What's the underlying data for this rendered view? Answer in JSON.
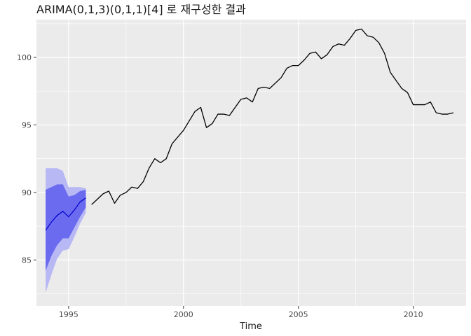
{
  "chart_data": {
    "type": "line",
    "title": "ARIMA(0,1,3)(0,1,1)[4] 로 재구성한 결과",
    "xlabel": "Time",
    "ylabel": "",
    "xlim": [
      1993.6,
      2012.3
    ],
    "ylim": [
      81.6,
      102.8
    ],
    "x_ticks": [
      1995,
      2000,
      2005,
      2010
    ],
    "y_ticks": [
      85,
      90,
      95,
      100
    ],
    "grid": true,
    "legend": "none",
    "colors": {
      "panel": "#ebebeb",
      "grid": "#ffffff",
      "series": "#000000",
      "fit_line": "#0000cc",
      "band_80": "#6b6bf0",
      "band_95": "#b8b8f5"
    },
    "series": [
      {
        "x": [
          1996.0,
          1996.25,
          1996.5,
          1996.75,
          1997.0,
          1997.25,
          1997.5,
          1997.75,
          1998.0,
          1998.25,
          1998.5,
          1998.75,
          1999.0,
          1999.25,
          1999.5,
          1999.75,
          2000.0,
          2000.25,
          2000.5,
          2000.75,
          2001.0,
          2001.25,
          2001.5,
          2001.75,
          2002.0,
          2002.25,
          2002.5,
          2002.75,
          2003.0,
          2003.25,
          2003.5,
          2003.75,
          2004.0,
          2004.25,
          2004.5,
          2004.75,
          2005.0,
          2005.25,
          2005.5,
          2005.75,
          2006.0,
          2006.25,
          2006.5,
          2006.75,
          2007.0,
          2007.25,
          2007.5,
          2007.75,
          2008.0,
          2008.25,
          2008.5,
          2008.75,
          2009.0,
          2009.25,
          2009.5,
          2009.75,
          2010.0,
          2010.25,
          2010.5,
          2010.75,
          2011.0,
          2011.25,
          2011.5,
          2011.75
        ],
        "values": [
          89.1,
          89.5,
          89.9,
          90.1,
          89.2,
          89.8,
          90.0,
          90.4,
          90.3,
          90.8,
          91.8,
          92.5,
          92.2,
          92.5,
          93.6,
          94.1,
          94.6,
          95.3,
          96.0,
          96.3,
          94.8,
          95.1,
          95.8,
          95.8,
          95.7,
          96.3,
          96.9,
          97.0,
          96.7,
          97.7,
          97.8,
          97.7,
          98.1,
          98.5,
          99.2,
          99.4,
          99.4,
          99.8,
          100.3,
          100.4,
          99.9,
          100.2,
          100.8,
          101.0,
          100.9,
          101.4,
          102.0,
          102.1,
          101.6,
          101.5,
          101.1,
          100.3,
          98.9,
          98.3,
          97.7,
          97.4,
          96.5,
          96.5,
          96.5,
          96.7,
          95.9,
          95.8,
          95.8,
          95.9
        ]
      },
      {
        "x": [
          1994.0,
          1994.25,
          1994.5,
          1994.75,
          1995.0,
          1995.25,
          1995.5,
          1995.75
        ],
        "values": [
          87.2,
          87.8,
          88.3,
          88.6,
          88.2,
          88.7,
          89.3,
          89.6
        ],
        "lo80": [
          84.2,
          85.3,
          86.1,
          86.6,
          86.6,
          87.4,
          88.2,
          88.9
        ],
        "hi80": [
          90.2,
          90.4,
          90.6,
          90.6,
          89.7,
          89.8,
          90.1,
          90.2
        ],
        "lo95": [
          82.6,
          83.9,
          85.1,
          85.7,
          85.8,
          86.7,
          87.7,
          88.5
        ],
        "hi95": [
          91.8,
          91.8,
          91.8,
          91.6,
          90.4,
          90.4,
          90.4,
          90.3
        ]
      }
    ]
  }
}
